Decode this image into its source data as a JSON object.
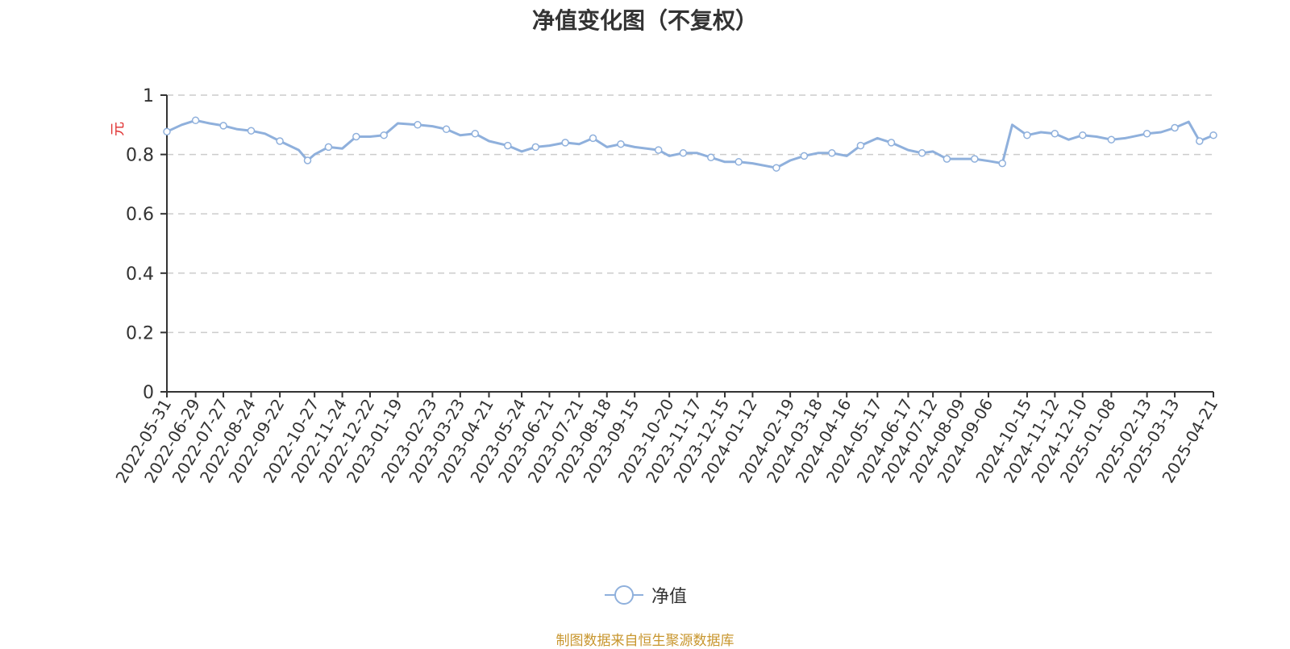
{
  "chart_data": {
    "type": "line",
    "title": "净值变化图（不复权）",
    "ylabel": "元",
    "ylim": [
      0,
      1
    ],
    "yticks": [
      "0",
      "0.2",
      "0.4",
      "0.6",
      "0.8",
      "1"
    ],
    "xlabels": [
      "2022-05-31",
      "2022-06-29",
      "2022-07-27",
      "2022-08-24",
      "2022-09-22",
      "2022-10-27",
      "2022-11-24",
      "2022-12-22",
      "2023-01-19",
      "2023-02-23",
      "2023-03-23",
      "2023-04-21",
      "2023-05-24",
      "2023-06-21",
      "2023-07-21",
      "2023-08-18",
      "2023-09-15",
      "2023-10-20",
      "2023-11-17",
      "2023-12-15",
      "2024-01-12",
      "2024-02-19",
      "2024-03-18",
      "2024-04-16",
      "2024-05-17",
      "2024-06-17",
      "2024-07-12",
      "2024-08-09",
      "2024-09-06",
      "2024-10-15",
      "2024-11-12",
      "2024-12-10",
      "2025-01-08",
      "2025-02-13",
      "2025-03-13",
      "2025-04-21"
    ],
    "grid": true,
    "legend_position": "bottom",
    "series": [
      {
        "name": "净值",
        "color": "#8fb0dc",
        "x": [
          "2022-05-31",
          "2022-06-15",
          "2022-06-29",
          "2022-07-13",
          "2022-07-27",
          "2022-08-10",
          "2022-08-24",
          "2022-09-07",
          "2022-09-22",
          "2022-10-11",
          "2022-10-20",
          "2022-10-27",
          "2022-11-10",
          "2022-11-24",
          "2022-12-08",
          "2022-12-22",
          "2023-01-05",
          "2023-01-19",
          "2023-02-08",
          "2023-02-23",
          "2023-03-09",
          "2023-03-23",
          "2023-04-07",
          "2023-04-21",
          "2023-05-10",
          "2023-05-24",
          "2023-06-07",
          "2023-06-21",
          "2023-07-07",
          "2023-07-21",
          "2023-08-04",
          "2023-08-18",
          "2023-09-01",
          "2023-09-15",
          "2023-10-09",
          "2023-10-20",
          "2023-11-03",
          "2023-11-17",
          "2023-12-01",
          "2023-12-15",
          "2023-12-29",
          "2024-01-12",
          "2024-02-05",
          "2024-02-19",
          "2024-03-04",
          "2024-03-18",
          "2024-04-01",
          "2024-04-16",
          "2024-04-30",
          "2024-05-17",
          "2024-05-31",
          "2024-06-17",
          "2024-07-01",
          "2024-07-12",
          "2024-07-26",
          "2024-08-09",
          "2024-08-23",
          "2024-09-06",
          "2024-09-20",
          "2024-09-30",
          "2024-10-15",
          "2024-10-29",
          "2024-11-12",
          "2024-11-26",
          "2024-12-10",
          "2024-12-24",
          "2025-01-08",
          "2025-01-22",
          "2025-02-13",
          "2025-02-27",
          "2025-03-13",
          "2025-03-27",
          "2025-04-07",
          "2025-04-21"
        ],
        "y": [
          0.877,
          0.9,
          0.915,
          0.905,
          0.897,
          0.885,
          0.88,
          0.87,
          0.845,
          0.815,
          0.78,
          0.8,
          0.825,
          0.82,
          0.86,
          0.86,
          0.865,
          0.905,
          0.9,
          0.895,
          0.885,
          0.865,
          0.87,
          0.845,
          0.83,
          0.81,
          0.825,
          0.83,
          0.84,
          0.835,
          0.855,
          0.825,
          0.835,
          0.825,
          0.815,
          0.795,
          0.805,
          0.805,
          0.79,
          0.775,
          0.775,
          0.77,
          0.755,
          0.78,
          0.795,
          0.805,
          0.805,
          0.795,
          0.83,
          0.855,
          0.84,
          0.815,
          0.805,
          0.81,
          0.785,
          0.785,
          0.785,
          0.778,
          0.77,
          0.9,
          0.865,
          0.875,
          0.87,
          0.85,
          0.865,
          0.86,
          0.85,
          0.855,
          0.87,
          0.875,
          0.89,
          0.91,
          0.845,
          0.865
        ]
      }
    ]
  },
  "footer": {
    "source_text": "制图数据来自恒生聚源数据库"
  }
}
